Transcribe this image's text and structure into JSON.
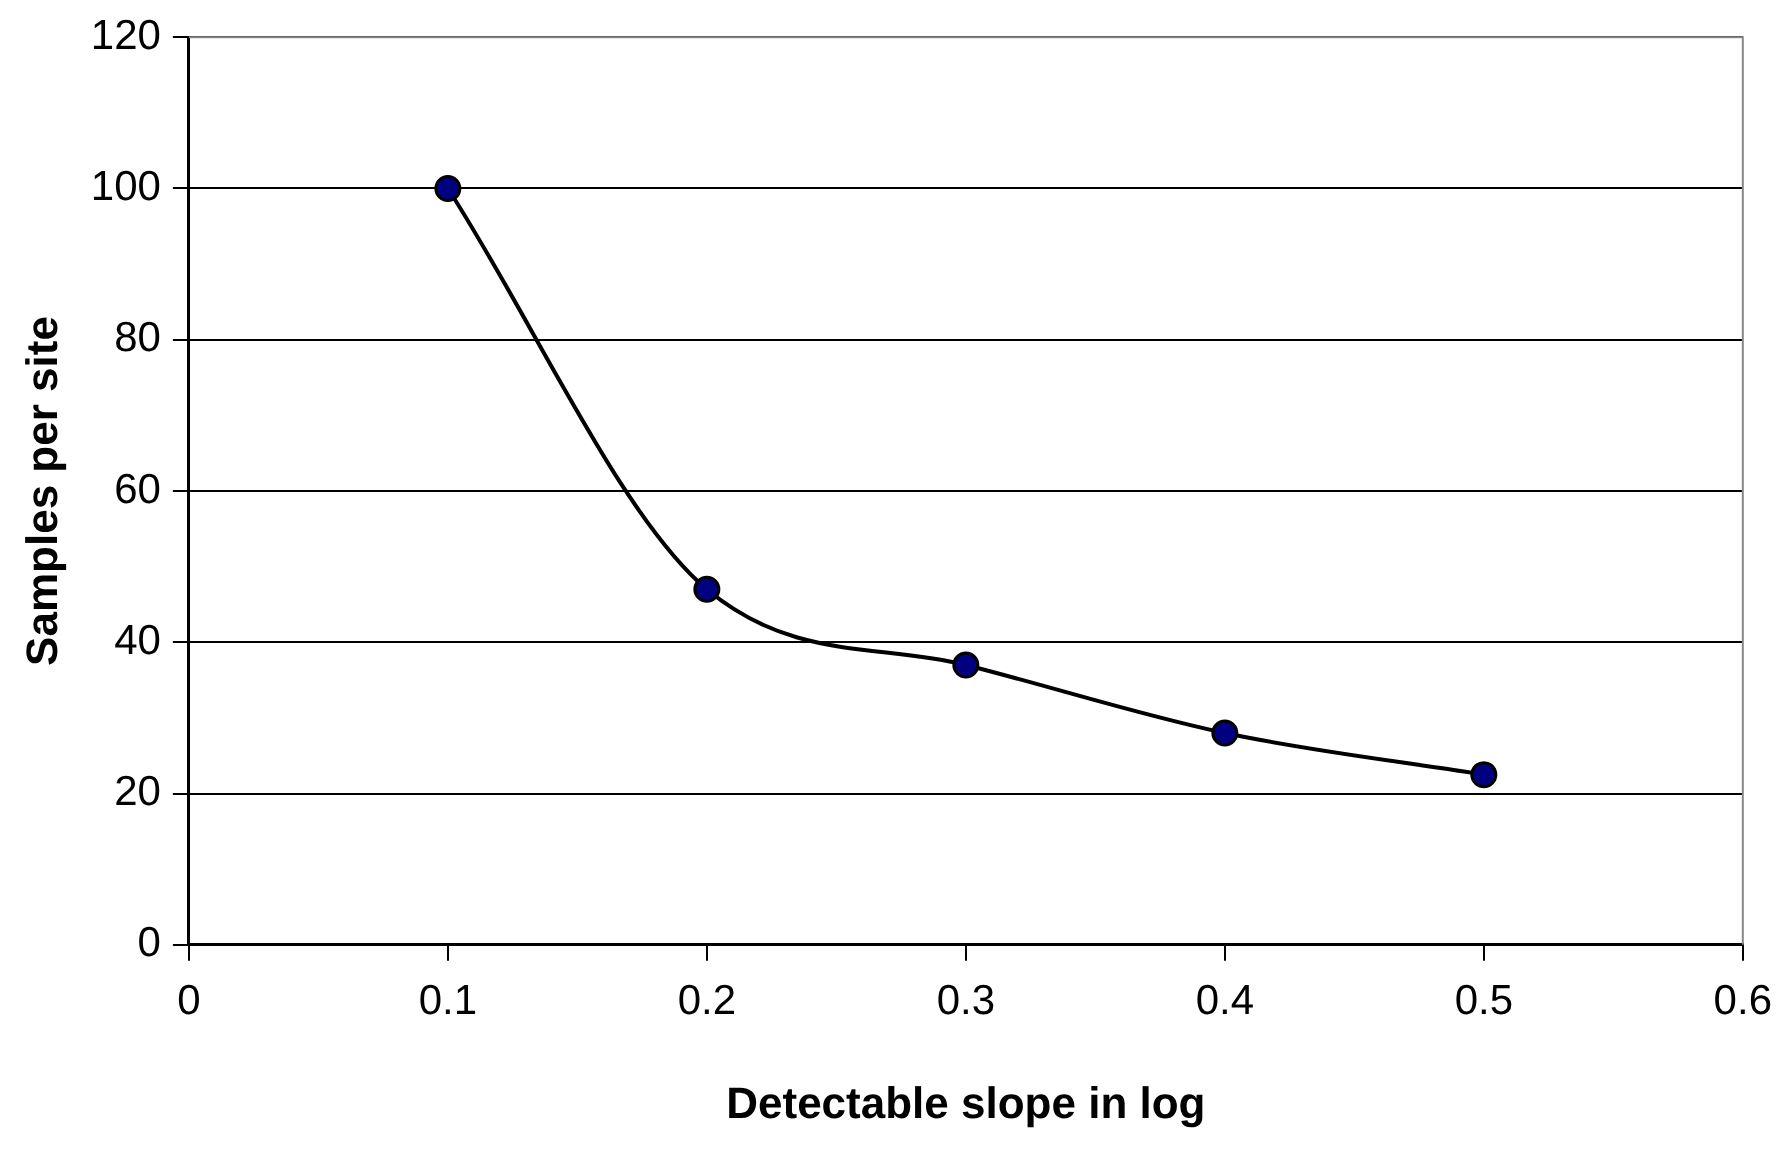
{
  "chart_data": {
    "type": "line",
    "xlabel": "Detectable slope in log",
    "ylabel": "Samples per site",
    "x": [
      0.1,
      0.2,
      0.3,
      0.4,
      0.5
    ],
    "series": [
      {
        "color": "#000000",
        "values": [
          100,
          47,
          37,
          28,
          22.5
        ]
      }
    ],
    "marker": "circle",
    "line_style": "solid",
    "grid": "y",
    "legend": false,
    "xlim": [
      0,
      0.6
    ],
    "xticks": [
      0,
      0.1,
      0.2,
      0.3,
      0.4,
      0.5,
      0.6
    ],
    "ylim": [
      0,
      120
    ],
    "yticks": [
      0,
      20,
      40,
      60,
      80,
      100,
      120
    ]
  }
}
